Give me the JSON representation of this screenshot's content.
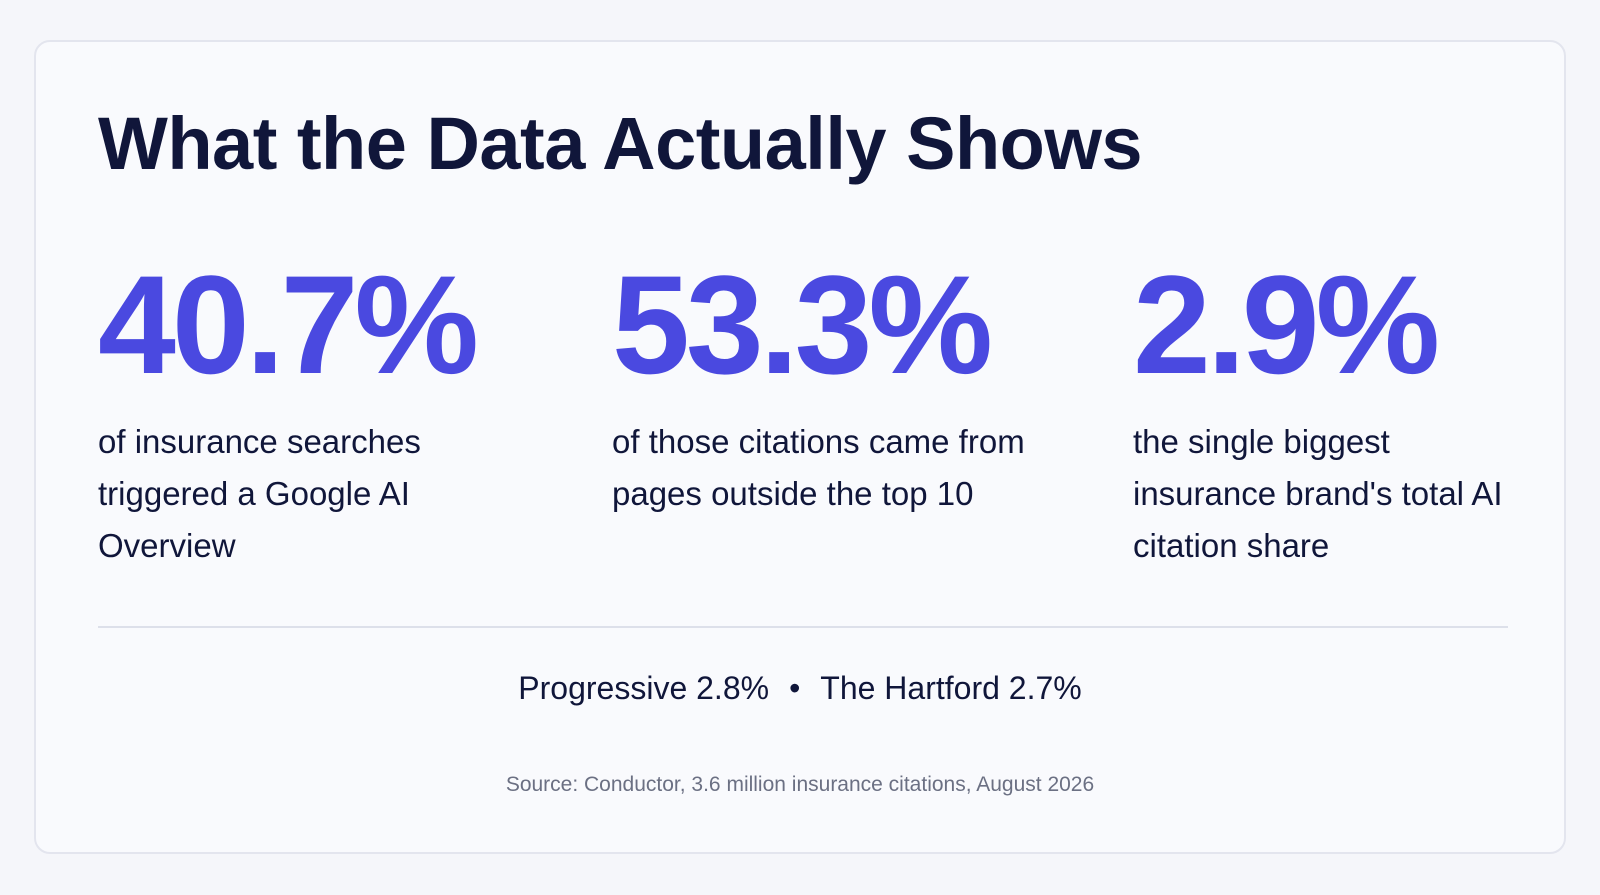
{
  "title": "What the Data Actually Shows",
  "stats": [
    {
      "value": "40.7%",
      "description": "of insurance searches triggered a Google AI Overview"
    },
    {
      "value": "53.3%",
      "description": "of those citations came from pages outside the top 10"
    },
    {
      "value": "2.9%",
      "description": "the single biggest insurance brand's total AI citation share"
    }
  ],
  "brands": [
    {
      "label": "Progressive 2.8%"
    },
    {
      "label": "The Hartford 2.7%"
    }
  ],
  "brand_separator": "•",
  "source": "Source: Conductor, 3.6 million insurance citations, August 2026",
  "colors": {
    "accent": "#4a49e0",
    "text": "#10163a",
    "muted": "#6b7083",
    "card_background": "#f9fafd"
  }
}
